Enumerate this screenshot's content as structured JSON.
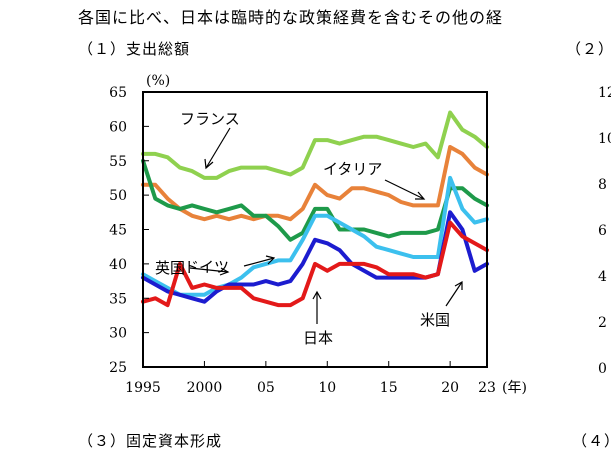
{
  "heading": "各国に比べ、日本は臨時的な政策経費を含むその他の経",
  "panels": {
    "p1": "（１）支出総額",
    "p2": "（２）",
    "p3": "（３）固定資本形成",
    "p4": "（４）"
  },
  "right_peek_ticks": [
    "12",
    "10",
    "8",
    "6",
    "4",
    "2",
    "0"
  ],
  "chart_data": {
    "type": "line",
    "y_unit": "(%)",
    "x_unit": "(年)",
    "xlim": [
      1995,
      2023
    ],
    "ylim": [
      25,
      65
    ],
    "x_tick_labels": [
      "1995",
      "2000",
      "05",
      "10",
      "15",
      "20",
      "23"
    ],
    "x_tick_values": [
      1995,
      2000,
      2005,
      2010,
      2015,
      2020,
      2023
    ],
    "y_ticks": [
      25,
      30,
      35,
      40,
      45,
      50,
      55,
      60,
      65
    ],
    "grid": false,
    "x": [
      1995,
      1996,
      1997,
      1998,
      1999,
      2000,
      2001,
      2002,
      2003,
      2004,
      2005,
      2006,
      2007,
      2008,
      2009,
      2010,
      2011,
      2012,
      2013,
      2014,
      2015,
      2016,
      2017,
      2018,
      2019,
      2020,
      2021,
      2022,
      2023
    ],
    "series": [
      {
        "name": "フランス",
        "color": "#8fd14f",
        "values": [
          56,
          56,
          55.5,
          54,
          53.5,
          52.5,
          52.5,
          53.5,
          54,
          54,
          54,
          53.5,
          53,
          54,
          58,
          58,
          57.5,
          58,
          58.5,
          58.5,
          58,
          57.5,
          57,
          57.5,
          55.5,
          62,
          59.5,
          58.5,
          57
        ]
      },
      {
        "name": "イタリア",
        "color": "#e8823a",
        "values": [
          51.5,
          51.5,
          49.5,
          48,
          47,
          46.5,
          47,
          46.5,
          47,
          46.5,
          47,
          47,
          46.5,
          48,
          51.5,
          50,
          49.5,
          51,
          51,
          50.5,
          50,
          49,
          48.5,
          48.5,
          48.5,
          57,
          56,
          54,
          53
        ]
      },
      {
        "name": "ドイツ",
        "color": "#1e9a4a",
        "values": [
          55,
          49.5,
          48.5,
          48,
          48.5,
          48,
          47.5,
          48,
          48.5,
          47,
          47,
          45.5,
          43.5,
          44.5,
          48,
          48,
          45,
          45,
          45,
          44.5,
          44,
          44.5,
          44.5,
          44.5,
          45,
          51,
          51,
          49.5,
          48.5
        ]
      },
      {
        "name": "英国",
        "color": "#3cc0ee",
        "values": [
          38.5,
          37.5,
          36.5,
          35.5,
          35.5,
          35.5,
          36.5,
          37,
          38,
          39.5,
          40,
          40.5,
          40.5,
          43.5,
          47,
          47,
          46,
          45,
          44,
          42.5,
          42,
          41.5,
          41,
          41,
          41,
          52.5,
          48,
          46,
          46.5
        ]
      },
      {
        "name": "米国",
        "color": "#1c1ccf",
        "values": [
          38,
          37,
          36,
          35.5,
          35,
          34.5,
          36,
          37,
          37,
          37,
          37.5,
          37,
          37.5,
          40,
          43.5,
          43,
          42,
          40,
          39,
          38,
          38,
          38,
          38,
          38,
          38.5,
          47.5,
          45,
          39,
          40
        ]
      },
      {
        "name": "日本",
        "color": "#e31919",
        "values": [
          34.5,
          35,
          34,
          40,
          36.5,
          37,
          36.5,
          36.5,
          36.5,
          35,
          34.5,
          34,
          34,
          35,
          40,
          39,
          40,
          40,
          40,
          39.5,
          38.5,
          38.5,
          38.5,
          38,
          38.5,
          46,
          44,
          43,
          42
        ]
      }
    ]
  }
}
